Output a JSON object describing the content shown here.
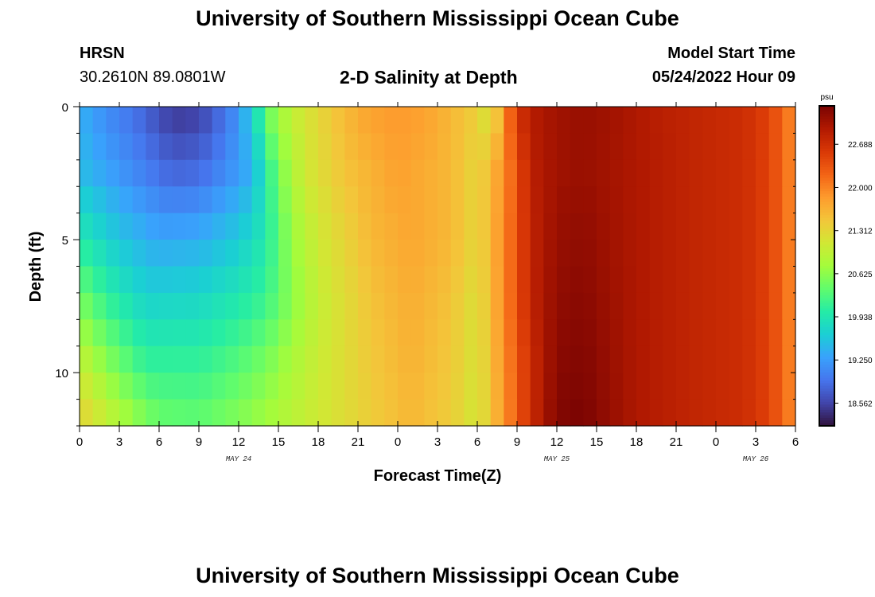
{
  "header": {
    "title": "University of Southern Mississippi Ocean Cube",
    "station": "HRSN",
    "coords": "30.2610N  89.0801W",
    "subtitle": "2-D Salinity at Depth",
    "start_label": "Model Start Time",
    "start_value": "05/24/2022 Hour 09",
    "footer_title": "University of Southern Mississippi Ocean Cube"
  },
  "chart_data": {
    "type": "heatmap",
    "title": "2-D Salinity at Depth",
    "xlabel": "Forecast Time(Z)",
    "ylabel": "Depth (ft)",
    "x_tick_labels": [
      "0",
      "3",
      "6",
      "9",
      "12",
      "15",
      "18",
      "21",
      "0",
      "3",
      "6",
      "9",
      "12",
      "15",
      "18",
      "21",
      "0",
      "3",
      "6"
    ],
    "x_hours_range": [
      0,
      54
    ],
    "date_labels": [
      {
        "label": "MAY 24",
        "hour": 12
      },
      {
        "label": "MAY 25",
        "hour": 36
      },
      {
        "label": "MAY 26",
        "hour": 51
      }
    ],
    "y_ticks": [
      0,
      5,
      10
    ],
    "ylim": [
      0,
      12
    ],
    "y_inverted": true,
    "depth_levels_ft": [
      0,
      1,
      2,
      3,
      4,
      5,
      6,
      7,
      8,
      9,
      10,
      11
    ],
    "colorbar": {
      "unit": "psu",
      "ticks": [
        "22.688",
        "22.000",
        "21.312",
        "20.625",
        "19.938",
        "19.250",
        "18.562"
      ],
      "range": [
        18.2,
        23.3
      ],
      "colors": [
        "#30123b",
        "#4145ab",
        "#4675ed",
        "#39a2fc",
        "#1bcfd4",
        "#24eca6",
        "#61fc6c",
        "#a4fc3b",
        "#d1e834",
        "#f3c63a",
        "#fe9b2d",
        "#f36315",
        "#d93806",
        "#b11901",
        "#7a0402"
      ]
    },
    "series": [
      {
        "values": [
          [
            0,
            19.4
          ],
          [
            2,
            19.1
          ],
          [
            4,
            18.9
          ],
          [
            7,
            18.45
          ],
          [
            9,
            18.5
          ],
          [
            11,
            18.9
          ],
          [
            12,
            19.2
          ],
          [
            13,
            19.7
          ],
          [
            14.5,
            20.6
          ],
          [
            16,
            21.0
          ],
          [
            18,
            21.3
          ],
          [
            20,
            21.6
          ],
          [
            22,
            21.8
          ],
          [
            24,
            21.85
          ],
          [
            26,
            21.8
          ],
          [
            28,
            21.6
          ],
          [
            30,
            21.4
          ],
          [
            31,
            21.0
          ],
          [
            32,
            21.9
          ],
          [
            33,
            22.6
          ],
          [
            34,
            22.9
          ],
          [
            36,
            23.05
          ],
          [
            38,
            23.1
          ],
          [
            40,
            23.05
          ],
          [
            42,
            22.95
          ],
          [
            44,
            22.85
          ],
          [
            46,
            22.8
          ],
          [
            48,
            22.75
          ],
          [
            50,
            22.7
          ],
          [
            52,
            22.5
          ],
          [
            53,
            22.2
          ],
          [
            54,
            21.9
          ]
        ]
      },
      {
        "values": [
          [
            0,
            19.5
          ],
          [
            2,
            19.3
          ],
          [
            4,
            19.1
          ],
          [
            7,
            18.8
          ],
          [
            9,
            18.85
          ],
          [
            11,
            19.1
          ],
          [
            13,
            19.4
          ],
          [
            15,
            20.5
          ],
          [
            17,
            21.1
          ],
          [
            20,
            21.5
          ],
          [
            24,
            21.8
          ],
          [
            28,
            21.6
          ],
          [
            30,
            21.3
          ],
          [
            32,
            21.9
          ],
          [
            34,
            22.85
          ],
          [
            36,
            23.05
          ],
          [
            38,
            23.1
          ],
          [
            42,
            22.95
          ],
          [
            46,
            22.8
          ],
          [
            50,
            22.7
          ],
          [
            52,
            22.5
          ],
          [
            54,
            21.9
          ]
        ]
      },
      {
        "values": [
          [
            0,
            19.95
          ],
          [
            3,
            19.55
          ],
          [
            6,
            19.3
          ],
          [
            9,
            19.35
          ],
          [
            12,
            19.6
          ],
          [
            14,
            19.95
          ],
          [
            16,
            20.7
          ],
          [
            18,
            21.1
          ],
          [
            22,
            21.6
          ],
          [
            25,
            21.75
          ],
          [
            28,
            21.6
          ],
          [
            30,
            21.3
          ],
          [
            32,
            21.95
          ],
          [
            34,
            22.8
          ],
          [
            36,
            23.1
          ],
          [
            38,
            23.15
          ],
          [
            42,
            22.95
          ],
          [
            46,
            22.8
          ],
          [
            50,
            22.7
          ],
          [
            52,
            22.5
          ],
          [
            54,
            21.9
          ]
        ]
      },
      {
        "values": [
          [
            0,
            20.5
          ],
          [
            2,
            20.1
          ],
          [
            5,
            19.7
          ],
          [
            9,
            19.75
          ],
          [
            12,
            19.95
          ],
          [
            14,
            20.15
          ],
          [
            16,
            20.6
          ],
          [
            18,
            21.0
          ],
          [
            22,
            21.5
          ],
          [
            25,
            21.7
          ],
          [
            28,
            21.5
          ],
          [
            30,
            21.2
          ],
          [
            32,
            21.95
          ],
          [
            34,
            22.8
          ],
          [
            36,
            23.15
          ],
          [
            38,
            23.2
          ],
          [
            42,
            22.95
          ],
          [
            46,
            22.8
          ],
          [
            50,
            22.7
          ],
          [
            52,
            22.5
          ],
          [
            54,
            21.9
          ]
        ]
      },
      {
        "values": [
          [
            0,
            21.0
          ],
          [
            2,
            20.6
          ],
          [
            5,
            20.1
          ],
          [
            9,
            20.1
          ],
          [
            12,
            20.3
          ],
          [
            14,
            20.5
          ],
          [
            16,
            20.8
          ],
          [
            18,
            21.05
          ],
          [
            22,
            21.45
          ],
          [
            25,
            21.65
          ],
          [
            28,
            21.45
          ],
          [
            30,
            21.15
          ],
          [
            32,
            21.9
          ],
          [
            34,
            22.7
          ],
          [
            36,
            23.2
          ],
          [
            38,
            23.25
          ],
          [
            42,
            22.95
          ],
          [
            46,
            22.8
          ],
          [
            50,
            22.7
          ],
          [
            52,
            22.5
          ],
          [
            54,
            21.9
          ]
        ]
      },
      {
        "values": [
          [
            0,
            21.4
          ],
          [
            3,
            20.9
          ],
          [
            6,
            20.45
          ],
          [
            9,
            20.4
          ],
          [
            12,
            20.6
          ],
          [
            15,
            20.85
          ],
          [
            18,
            21.1
          ],
          [
            22,
            21.4
          ],
          [
            25,
            21.6
          ],
          [
            28,
            21.4
          ],
          [
            30,
            21.1
          ],
          [
            32,
            21.85
          ],
          [
            34,
            22.7
          ],
          [
            36,
            23.25
          ],
          [
            38,
            23.3
          ],
          [
            42,
            22.95
          ],
          [
            46,
            22.8
          ],
          [
            50,
            22.7
          ],
          [
            52,
            22.5
          ],
          [
            54,
            21.9
          ]
        ]
      }
    ]
  }
}
